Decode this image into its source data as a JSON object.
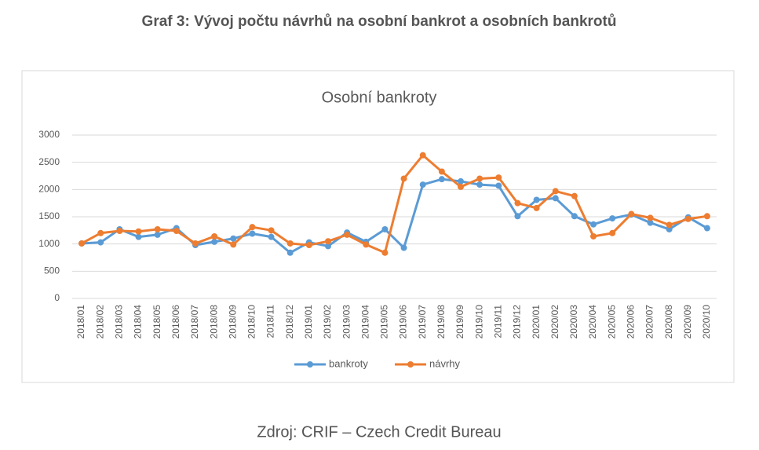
{
  "heading": "Graf 3: Vývoj počtu návrhů na osobní bankrot a osobních bankrotů",
  "source": "Zdroj: CRIF – Czech Credit Bureau",
  "chart_data": {
    "type": "line",
    "title": "Osobní bankroty",
    "categories": [
      "2018/01",
      "2018/02",
      "2018/03",
      "2018/04",
      "2018/05",
      "2018/06",
      "2018/07",
      "2018/08",
      "2018/09",
      "2018/10",
      "2018/11",
      "2018/12",
      "2019/01",
      "2019/02",
      "2019/03",
      "2019/04",
      "2019/05",
      "2019/06",
      "2019/07",
      "2019/08",
      "2019/09",
      "2019/10",
      "2019/11",
      "2019/12",
      "2020/01",
      "2020/02",
      "2020/03",
      "2020/04",
      "2020/05",
      "2020/06",
      "2020/07",
      "2020/08",
      "2020/09",
      "2020/10"
    ],
    "series": [
      {
        "name": "bankroty",
        "color": "#5b9bd5",
        "values": [
          1010,
          1030,
          1270,
          1130,
          1170,
          1290,
          980,
          1040,
          1100,
          1190,
          1130,
          840,
          1030,
          960,
          1210,
          1040,
          1270,
          930,
          2090,
          2190,
          2150,
          2090,
          2070,
          1510,
          1810,
          1840,
          1510,
          1360,
          1470,
          1540,
          1390,
          1270,
          1490,
          1290
        ]
      },
      {
        "name": "návrhy",
        "color": "#ed7d31",
        "values": [
          1010,
          1200,
          1240,
          1230,
          1270,
          1240,
          1010,
          1140,
          990,
          1310,
          1250,
          1010,
          980,
          1050,
          1170,
          990,
          840,
          2200,
          2630,
          2330,
          2050,
          2200,
          2220,
          1750,
          1660,
          1970,
          1880,
          1140,
          1200,
          1550,
          1480,
          1350,
          1460,
          1510
        ]
      }
    ],
    "ylim": [
      0,
      3000
    ],
    "yticks": [
      0,
      500,
      1000,
      1500,
      2000,
      2500,
      3000
    ],
    "grid": true,
    "legend": "bottom"
  }
}
